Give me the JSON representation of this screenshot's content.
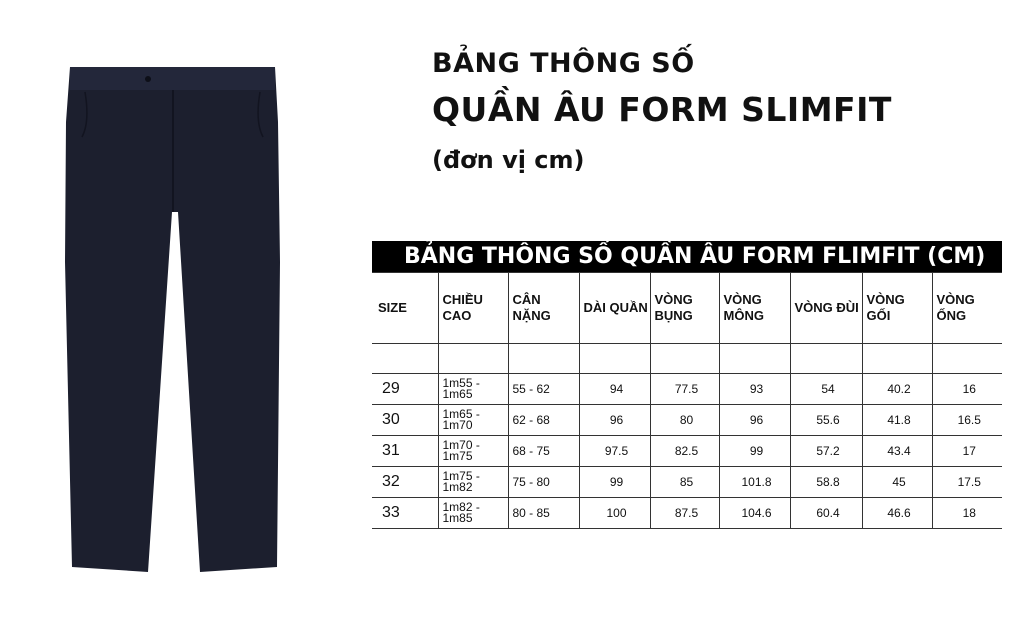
{
  "title_line1": "BẢNG THÔNG SỐ",
  "title_line2": "QUẦN ÂU FORM SLIMFIT",
  "unit_note": "(đơn vị cm)",
  "table": {
    "caption": "BẢNG THÔNG SỐ QUẦN ÂU FORM FLIMFIT (CM)",
    "headers": [
      "SIZE",
      "CHIỀU CAO",
      "CÂN NẶNG",
      "DÀI QUẦN",
      "VÒNG BỤNG",
      "VÒNG MÔNG",
      "VÒNG ĐÙI",
      "VÒNG GỐI",
      "VÒNG ỐNG"
    ],
    "rows": [
      [
        "29",
        "1m55 - 1m65",
        "55 - 62",
        "94",
        "77.5",
        "93",
        "54",
        "40.2",
        "16"
      ],
      [
        "30",
        "1m65 - 1m70",
        "62 - 68",
        "96",
        "80",
        "96",
        "55.6",
        "41.8",
        "16.5"
      ],
      [
        "31",
        "1m70 - 1m75",
        "68 - 75",
        "97.5",
        "82.5",
        "99",
        "57.2",
        "43.4",
        "17"
      ],
      [
        "32",
        "1m75 - 1m82",
        "75 - 80",
        "99",
        "85",
        "101.8",
        "58.8",
        "45",
        "17.5"
      ],
      [
        "33",
        "1m82 - 1m85",
        "80 - 85",
        "100",
        "87.5",
        "104.6",
        "60.4",
        "46.6",
        "18"
      ]
    ]
  },
  "colors": {
    "pants": "#1c1f2e",
    "caption_bg": "#000000"
  }
}
